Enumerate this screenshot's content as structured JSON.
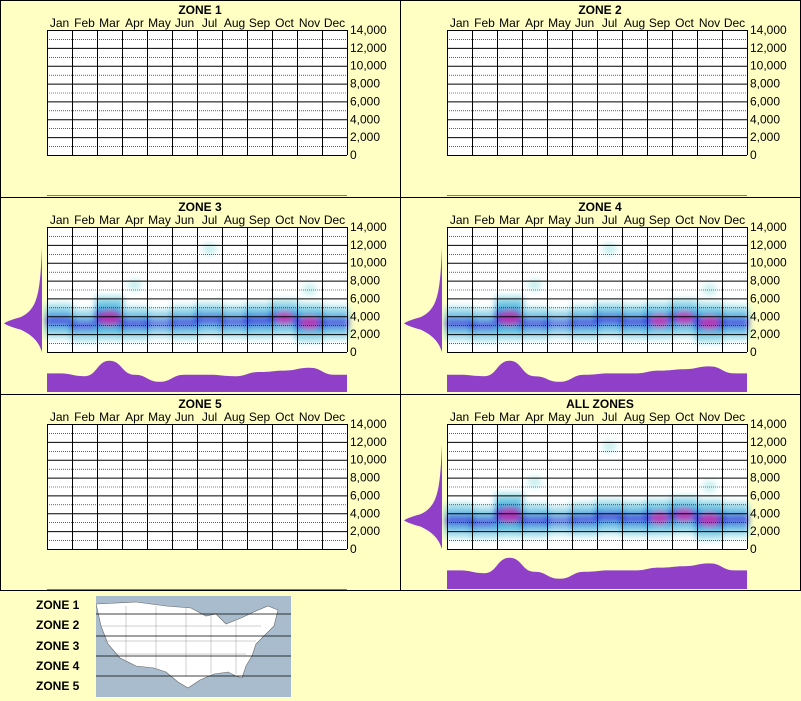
{
  "months": [
    "Jan",
    "Feb",
    "Mar",
    "Apr",
    "May",
    "Jun",
    "Jul",
    "Aug",
    "Sep",
    "Oct",
    "Nov",
    "Dec"
  ],
  "y_ticks": [
    "14,000",
    "12,000",
    "10,000",
    "8,000",
    "6,000",
    "4,000",
    "2,000",
    "0"
  ],
  "legend_zones": [
    "ZONE 1",
    "ZONE 2",
    "ZONE 3",
    "ZONE 4",
    "ZONE 5"
  ],
  "colors": {
    "background": "#ffffc4",
    "density_low": "#c8f0f0",
    "density_mid": "#28a8d8",
    "density_high": "#1a1ad2",
    "density_peak": "#e030a8",
    "marginal": "#9040c8"
  },
  "chart_data": [
    {
      "type": "heatmap",
      "title": "ZONE 1",
      "ylim": [
        0,
        14000
      ],
      "has_data": false
    },
    {
      "type": "heatmap",
      "title": "ZONE 2",
      "ylim": [
        0,
        14000
      ],
      "has_data": false
    },
    {
      "type": "heatmap",
      "title": "ZONE 3",
      "ylim": [
        0,
        14000
      ],
      "has_data": true,
      "peak_months_elevation": [
        3500,
        3000,
        3800,
        3200,
        3200,
        3300,
        3600,
        3400,
        3500,
        3800,
        3300,
        3300
      ],
      "activity": [
        0.45,
        0.35,
        0.9,
        0.4,
        0.15,
        0.4,
        0.4,
        0.35,
        0.5,
        0.55,
        0.65,
        0.4
      ],
      "outliers": [
        {
          "month": "Jul",
          "elevation": 11500
        },
        {
          "month": "Apr",
          "elevation": 7500
        },
        {
          "month": "Nov",
          "elevation": 7000
        }
      ]
    },
    {
      "type": "heatmap",
      "title": "ZONE 4",
      "ylim": [
        0,
        14000
      ],
      "has_data": true,
      "peak_months_elevation": [
        3200,
        3000,
        3800,
        3200,
        3200,
        3300,
        3600,
        3400,
        3500,
        3800,
        3300,
        3300
      ],
      "activity": [
        0.4,
        0.35,
        0.9,
        0.35,
        0.15,
        0.4,
        0.45,
        0.45,
        0.55,
        0.6,
        0.7,
        0.45
      ],
      "outliers": [
        {
          "month": "Jul",
          "elevation": 11500
        },
        {
          "month": "Apr",
          "elevation": 7500
        },
        {
          "month": "Nov",
          "elevation": 7000
        }
      ]
    },
    {
      "type": "heatmap",
      "title": "ZONE 5",
      "ylim": [
        0,
        14000
      ],
      "has_data": false
    },
    {
      "type": "heatmap",
      "title": "ALL ZONES",
      "ylim": [
        0,
        14000
      ],
      "has_data": true,
      "peak_months_elevation": [
        3200,
        3000,
        3800,
        3200,
        3200,
        3300,
        3600,
        3400,
        3500,
        3800,
        3300,
        3300
      ],
      "activity": [
        0.45,
        0.35,
        0.9,
        0.4,
        0.15,
        0.4,
        0.45,
        0.45,
        0.55,
        0.6,
        0.7,
        0.45
      ],
      "outliers": [
        {
          "month": "Jul",
          "elevation": 11500
        },
        {
          "month": "Apr",
          "elevation": 7500
        },
        {
          "month": "Nov",
          "elevation": 7000
        }
      ]
    }
  ]
}
